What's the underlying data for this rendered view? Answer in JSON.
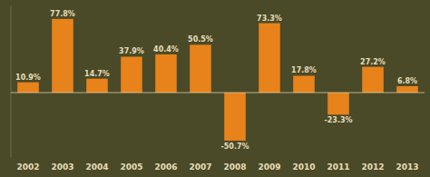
{
  "chart_data": {
    "type": "bar",
    "categories": [
      "2002",
      "2003",
      "2004",
      "2005",
      "2006",
      "2007",
      "2008",
      "2009",
      "2010",
      "2011",
      "2012",
      "2013"
    ],
    "values": [
      10.9,
      77.8,
      14.7,
      37.9,
      40.4,
      50.5,
      -50.7,
      73.3,
      17.8,
      -23.3,
      27.2,
      6.8
    ],
    "value_labels": [
      "10.9%",
      "77.8%",
      "14.7%",
      "37.9%",
      "40.4%",
      "50.5%",
      "-50.7%",
      "73.3%",
      "17.8%",
      "-23.3%",
      "27.2%",
      "6.8%"
    ],
    "color": "#E8821A",
    "ylim": [
      -68,
      92
    ],
    "data_labels": true,
    "tick_labels": "x"
  }
}
